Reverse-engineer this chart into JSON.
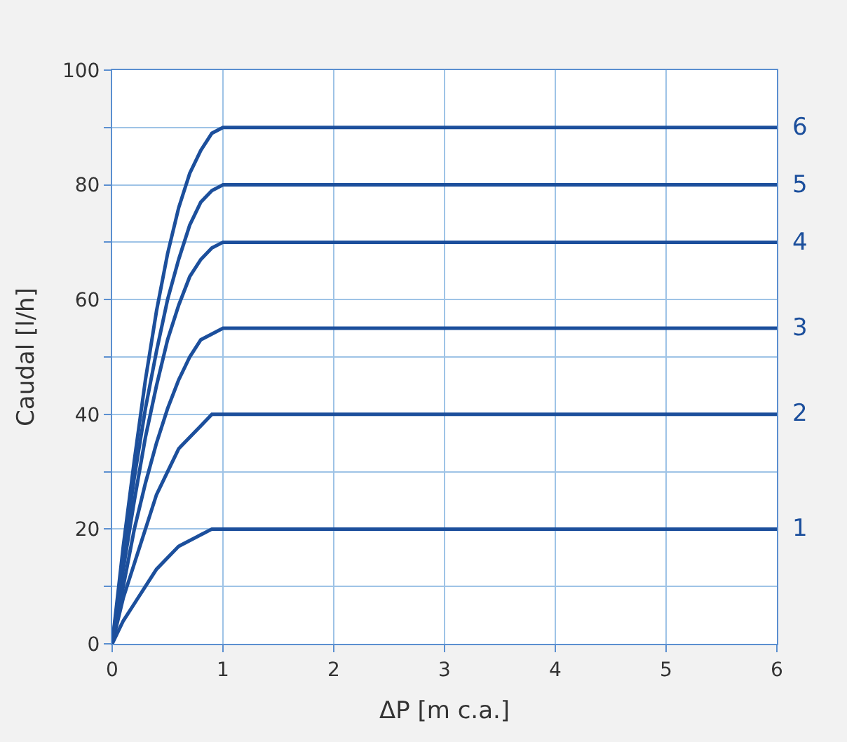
{
  "chart_data": {
    "type": "line",
    "xlabel": "ΔP [m c.a.]",
    "ylabel": "Caudal [l/h]",
    "x": [
      0,
      0.1,
      0.2,
      0.3,
      0.4,
      0.5,
      0.6,
      0.7,
      0.8,
      0.9,
      1,
      6
    ],
    "series": [
      {
        "name": "1",
        "color": "#1c4f9c",
        "values": [
          0,
          4,
          7,
          10,
          13,
          15,
          17,
          18,
          19,
          20,
          20,
          20
        ]
      },
      {
        "name": "2",
        "color": "#1c4f9c",
        "values": [
          0,
          8,
          14,
          20,
          26,
          30,
          34,
          36,
          38,
          40,
          40,
          40
        ]
      },
      {
        "name": "3",
        "color": "#1c4f9c",
        "values": [
          0,
          10,
          20,
          28,
          35,
          41,
          46,
          50,
          53,
          54,
          55,
          55
        ]
      },
      {
        "name": "4",
        "color": "#1c4f9c",
        "values": [
          0,
          13,
          25,
          36,
          45,
          53,
          59,
          64,
          67,
          69,
          70,
          70
        ]
      },
      {
        "name": "5",
        "color": "#1c4f9c",
        "values": [
          0,
          15,
          29,
          41,
          51,
          60,
          67,
          73,
          77,
          79,
          80,
          80
        ]
      },
      {
        "name": "6",
        "color": "#1c4f9c",
        "values": [
          0,
          17,
          32,
          46,
          58,
          68,
          76,
          82,
          86,
          89,
          90,
          90
        ]
      }
    ],
    "xlim": [
      0,
      6
    ],
    "xticks": [
      0,
      1,
      2,
      3,
      4,
      5,
      6
    ],
    "ylim": [
      0,
      100
    ],
    "yticks": [
      0,
      {
        "value": 10,
        "label": null
      },
      20,
      {
        "value": 30,
        "label": null
      },
      40,
      {
        "value": 50,
        "label": null
      },
      60,
      {
        "value": 70,
        "label": null
      },
      80,
      {
        "value": 90,
        "label": null
      },
      100
    ],
    "grid": true,
    "legend": false,
    "marker": "none",
    "line_style": "solid"
  }
}
